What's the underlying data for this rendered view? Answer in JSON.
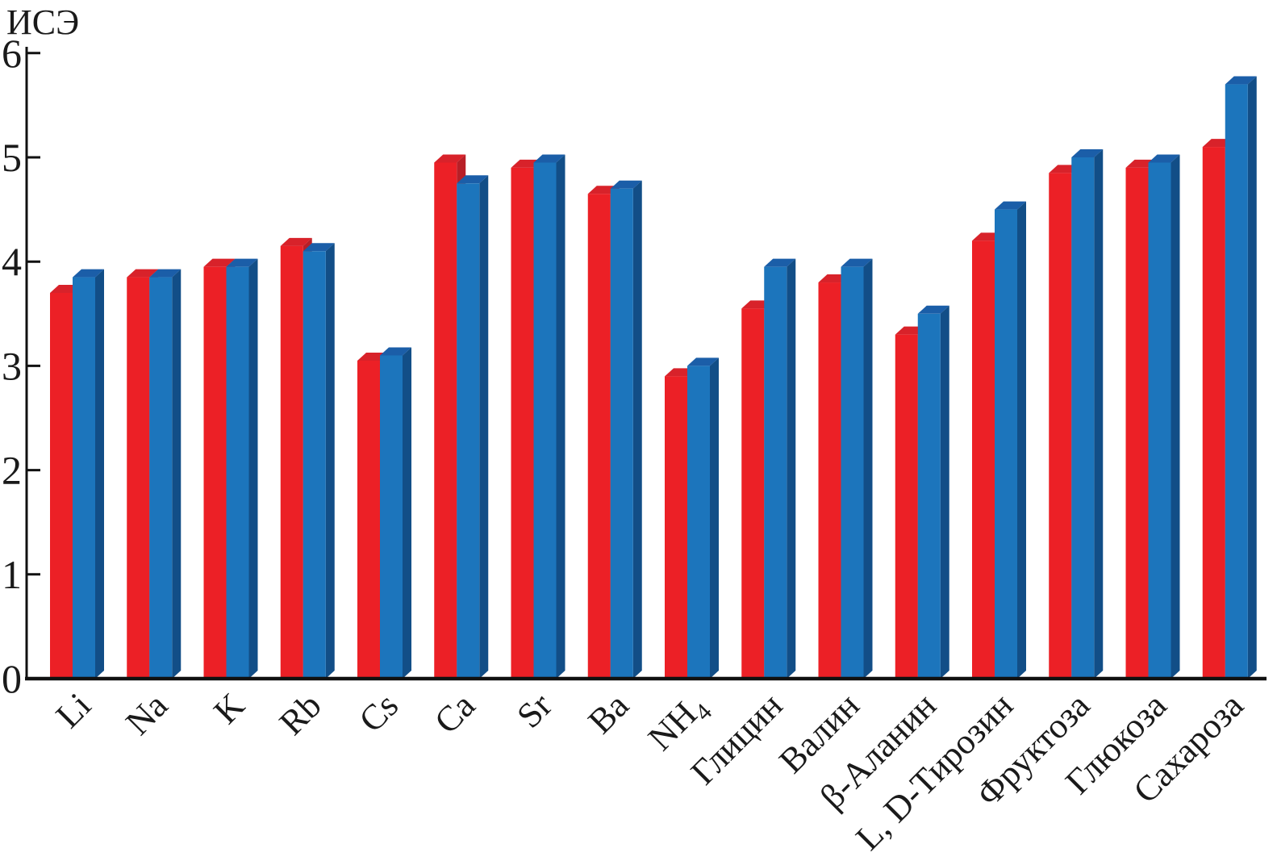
{
  "chart_data": {
    "type": "bar",
    "title": "",
    "ylabel": "ИСЭ",
    "xlabel": "",
    "ylim": [
      0,
      6
    ],
    "yticks": [
      0,
      1,
      2,
      3,
      4,
      5,
      6
    ],
    "grid": false,
    "legend": "none",
    "bar_style": "pseudo-3d-beveled",
    "background_color": "#ffffff",
    "axis_color": "#111111",
    "text_color": "#1a1a1a",
    "categories": [
      "Li",
      "Na",
      "K",
      "Rb",
      "Cs",
      "Ca",
      "Sr",
      "Ba",
      "NH₄",
      "Глицин",
      "Валин",
      "β-Аланин",
      "L, D-Тирозин",
      "Фруктоза",
      "Глюкоза",
      "Сахароза"
    ],
    "series": [
      {
        "color_name": "red",
        "color": "#EC2026",
        "color_top": "#D8222A",
        "color_side": "#B81F27",
        "values": [
          3.7,
          3.85,
          3.95,
          4.15,
          3.05,
          4.95,
          4.9,
          4.65,
          2.9,
          3.55,
          3.8,
          3.3,
          4.2,
          4.85,
          4.9,
          5.1
        ]
      },
      {
        "color_name": "blue",
        "color": "#1C75BC",
        "color_top": "#1B5EA8",
        "color_side": "#124E87",
        "values": [
          3.85,
          3.85,
          3.95,
          4.1,
          3.1,
          4.75,
          4.95,
          4.7,
          3.0,
          3.95,
          3.95,
          3.5,
          4.5,
          5.0,
          4.95,
          5.7
        ]
      }
    ]
  }
}
